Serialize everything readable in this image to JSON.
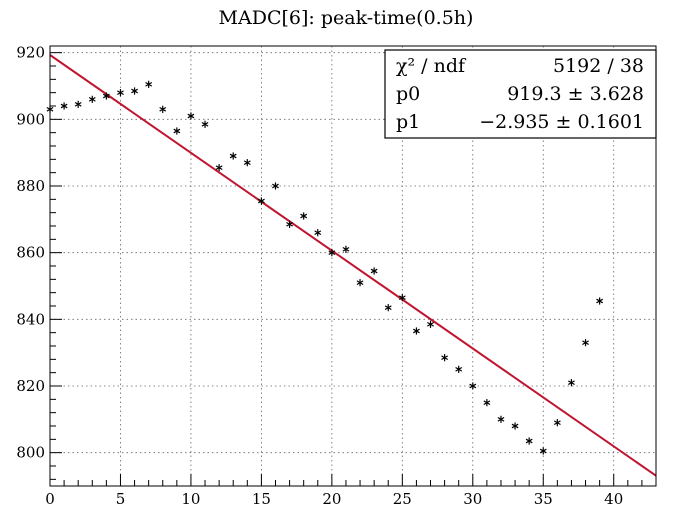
{
  "chart_data": {
    "type": "scatter",
    "title": "MADC[6]: peak-time(0.5h)",
    "xlabel": "",
    "ylabel": "",
    "xlim": [
      0,
      43
    ],
    "ylim": [
      790,
      922
    ],
    "x_ticks": [
      0,
      5,
      10,
      15,
      20,
      25,
      30,
      35,
      40
    ],
    "y_ticks": [
      800,
      820,
      840,
      860,
      880,
      900,
      920
    ],
    "grid": true,
    "marker": "asterisk",
    "series": [
      {
        "x": [
          0,
          1,
          2,
          3,
          4,
          5,
          6,
          7,
          8,
          9,
          10,
          11,
          12,
          13,
          14,
          15,
          16,
          17,
          18,
          19,
          20,
          21,
          22,
          23,
          24,
          25,
          26,
          27,
          28,
          29,
          30,
          31,
          32,
          33,
          34,
          35,
          36,
          37,
          38,
          39
        ],
        "values": [
          903,
          904,
          904.5,
          906,
          907,
          908,
          908.5,
          910.5,
          903,
          896.5,
          901,
          898.5,
          885.5,
          889,
          887,
          875.5,
          880,
          868.5,
          871,
          866,
          860,
          861,
          851,
          854.5,
          843.5,
          846.5,
          836.5,
          838.5,
          828.5,
          825,
          820,
          815,
          810,
          808,
          803.5,
          800.5,
          809,
          821,
          833,
          845.5
        ]
      }
    ],
    "fit_line": {
      "p0": 919.3,
      "p1": -2.935,
      "color": "#c0152f"
    },
    "stats_box": {
      "rows": [
        {
          "label": "χ² / ndf",
          "value": "5192 / 38"
        },
        {
          "label": "p0",
          "value": "919.3 ± 3.628"
        },
        {
          "label": "p1",
          "value": "−2.935 ± 0.1601"
        }
      ]
    }
  }
}
